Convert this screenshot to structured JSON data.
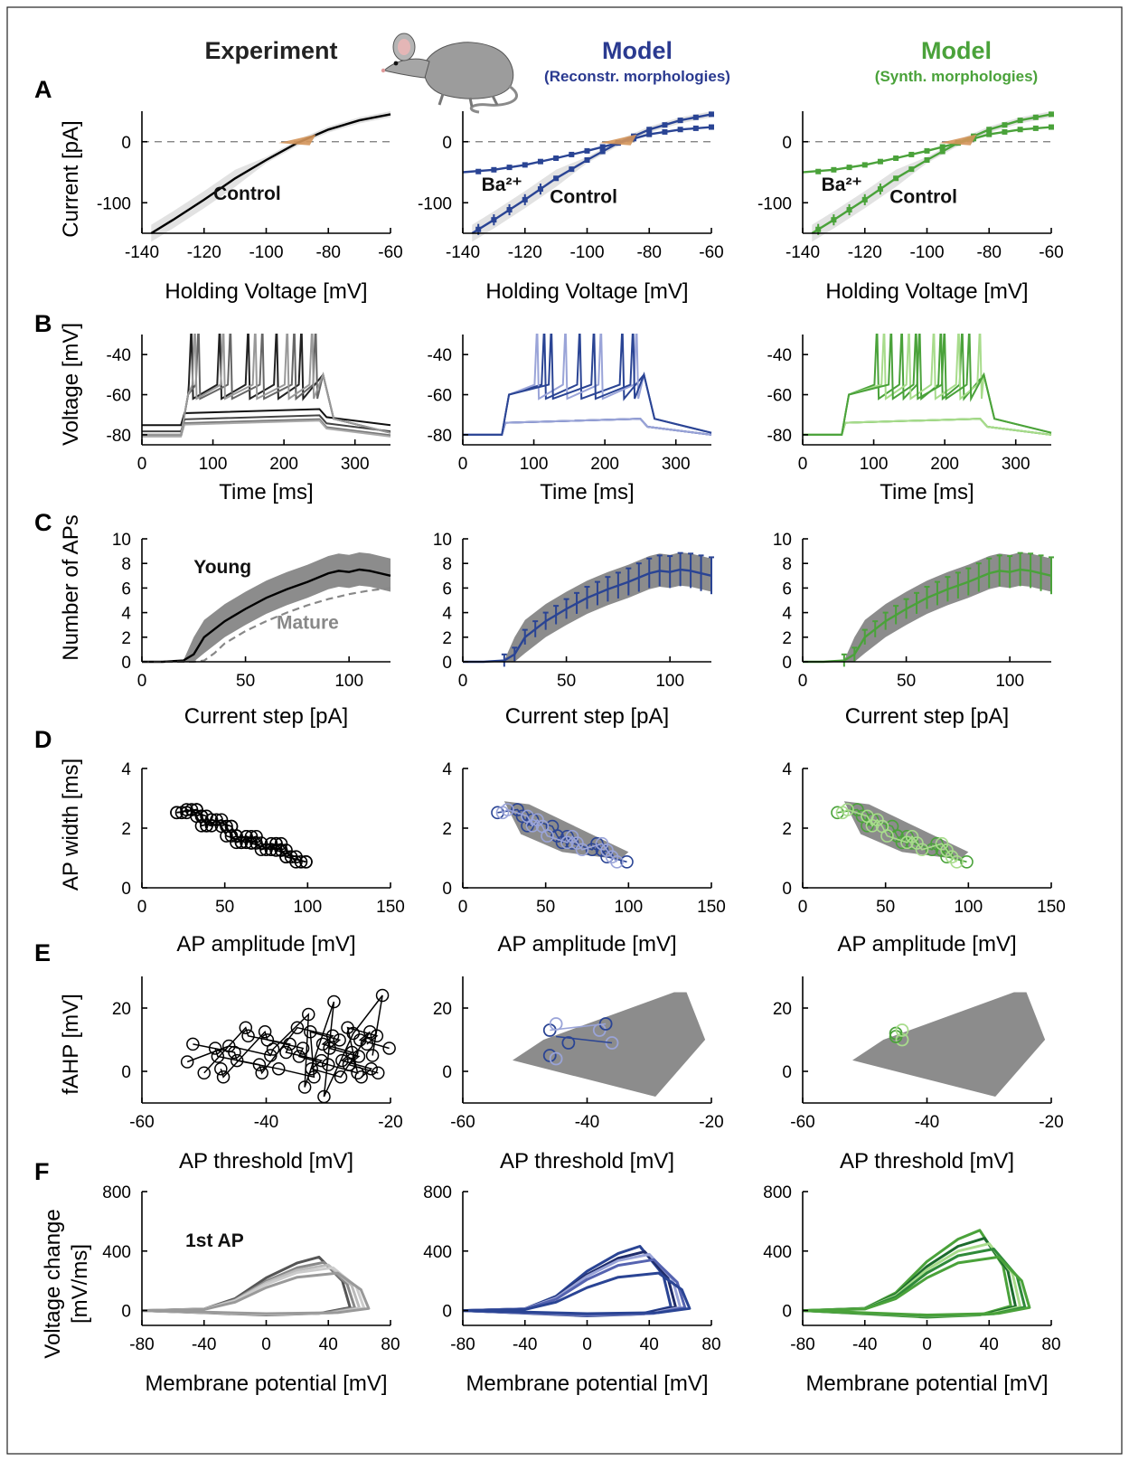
{
  "header": {
    "experiment": "Experiment",
    "model_blue": "Model",
    "model_blue_sub": "(Reconstr. morphologies)",
    "model_green": "Model",
    "model_green_sub": "(Synth. morphologies)"
  },
  "colors": {
    "experiment": "#000000",
    "blue": "#2a4494",
    "blue_light": "#9aa4d8",
    "green": "#4aa23a",
    "green_light": "#a8dc8c",
    "band": "#8c8c8c",
    "band_light": "#e2e2e2",
    "wedge": "#d4955a"
  },
  "icon": "mouse-icon",
  "panel_labels": [
    "A",
    "B",
    "C",
    "D",
    "E",
    "F"
  ],
  "rows": {
    "A": {
      "ylabel": "Current [pA]",
      "xlabel": "Holding Voltage [mV]",
      "xticks": [
        "-140",
        "-120",
        "-100",
        "-80",
        "-60"
      ],
      "yticks": [
        "0",
        "-100"
      ],
      "annotations": [
        "Control",
        "Ba2+"
      ]
    },
    "B": {
      "ylabel": "Voltage [mV]",
      "xlabel": "Time [ms]",
      "xticks": [
        "0",
        "100",
        "200",
        "300"
      ],
      "yticks": [
        "-40",
        "-60",
        "-80"
      ]
    },
    "C": {
      "ylabel": "Number of APs",
      "xlabel": "Current step [pA]",
      "xticks": [
        "0",
        "50",
        "100"
      ],
      "yticks": [
        "0",
        "2",
        "4",
        "6",
        "8",
        "10"
      ],
      "annotations": [
        "Young",
        "Mature"
      ]
    },
    "D": {
      "ylabel": "AP width [ms]",
      "xlabel": "AP amplitude [mV]",
      "xticks": [
        "0",
        "50",
        "100",
        "150"
      ],
      "yticks": [
        "0",
        "2",
        "4"
      ]
    },
    "E": {
      "ylabel": "fAHP [mV]",
      "xlabel": "AP threshold [mV]",
      "xticks": [
        "-60",
        "-40",
        "-20"
      ],
      "yticks": [
        "0",
        "20"
      ]
    },
    "F": {
      "ylabel1": "Voltage change",
      "ylabel2": "[mV/ms]",
      "xlabel": "Membrane potential [mV]",
      "xticks": [
        "-80",
        "-40",
        "0",
        "40",
        "80"
      ],
      "yticks": [
        "0",
        "400",
        "800"
      ],
      "annotation": "1st AP"
    }
  },
  "chart_data": [
    {
      "panel": "A",
      "type": "line",
      "xlim": [
        -140,
        -60
      ],
      "ylim": [
        -150,
        50
      ],
      "series": [
        {
          "name": "Control",
          "x": [
            -137,
            -130,
            -120,
            -110,
            -100,
            -90,
            -80,
            -70,
            -60
          ],
          "y": [
            -150,
            -128,
            -95,
            -60,
            -30,
            -2,
            20,
            35,
            45
          ]
        },
        {
          "name": "Ba2+",
          "x": [
            -140,
            -130,
            -120,
            -110,
            -100,
            -90,
            -80,
            -70,
            -60
          ],
          "y": [
            -50,
            -46,
            -38,
            -27,
            -15,
            -2,
            12,
            20,
            24
          ]
        }
      ]
    },
    {
      "panel": "B",
      "type": "line",
      "xlim": [
        0,
        350
      ],
      "ylim": [
        -85,
        -30
      ],
      "series": [
        {
          "name": "",
          "x": [
            0,
            55,
            60,
            250,
            260,
            350
          ],
          "y": [
            -80,
            -80,
            -74,
            -72,
            -76,
            -80
          ]
        }
      ]
    },
    {
      "panel": "C",
      "type": "line",
      "xlim": [
        0,
        120
      ],
      "ylim": [
        0,
        10
      ],
      "series": [
        {
          "name": "Young",
          "x": [
            0,
            10,
            20,
            25,
            30,
            40,
            50,
            60,
            70,
            80,
            90,
            95,
            100,
            105,
            110,
            120
          ],
          "y": [
            0,
            0,
            0.1,
            0.6,
            2,
            3.3,
            4.3,
            5.2,
            5.9,
            6.5,
            7.2,
            7.4,
            7.3,
            7.5,
            7.4,
            7
          ]
        },
        {
          "name": "Mature",
          "x": [
            0,
            25,
            30,
            35,
            40,
            50,
            60,
            70,
            80,
            90,
            100,
            110,
            120
          ],
          "y": [
            0,
            0,
            0.1,
            0.7,
            1.5,
            2.5,
            3.3,
            4,
            4.6,
            5.1,
            5.5,
            5.8,
            6
          ]
        }
      ]
    },
    {
      "panel": "D",
      "type": "scatter",
      "xlim": [
        0,
        150
      ],
      "ylim": [
        0,
        4
      ],
      "series": [
        {
          "name": "",
          "x": [
            25,
            30,
            35,
            40,
            45,
            50,
            55,
            60,
            65,
            70,
            75,
            80,
            85,
            90,
            95
          ],
          "y": [
            2.7,
            2.5,
            2.4,
            2.2,
            2.1,
            2,
            1.8,
            1.7,
            1.6,
            1.5,
            1.4,
            1.3,
            1.2,
            1.1,
            1.05
          ]
        }
      ]
    },
    {
      "panel": "E",
      "type": "scatter",
      "xlim": [
        -60,
        -20
      ],
      "ylim": [
        -10,
        30
      ],
      "series": [
        {
          "name": "",
          "x": [
            -50,
            -46,
            -42,
            -38,
            -35,
            -32,
            -30,
            -28,
            -26,
            -24,
            -22
          ],
          "y": [
            3,
            8,
            5,
            7,
            18,
            -5,
            22,
            -8,
            12,
            24,
            5
          ]
        }
      ]
    },
    {
      "panel": "F",
      "type": "line",
      "xlim": [
        -80,
        80
      ],
      "ylim": [
        -100,
        800
      ],
      "series": [
        {
          "name": "1st AP",
          "x": [
            -80,
            -40,
            -20,
            0,
            20,
            40,
            55,
            60,
            40,
            0,
            -40,
            -80
          ],
          "y": [
            0,
            10,
            80,
            220,
            320,
            360,
            200,
            20,
            -20,
            -30,
            -15,
            0
          ]
        }
      ]
    }
  ]
}
